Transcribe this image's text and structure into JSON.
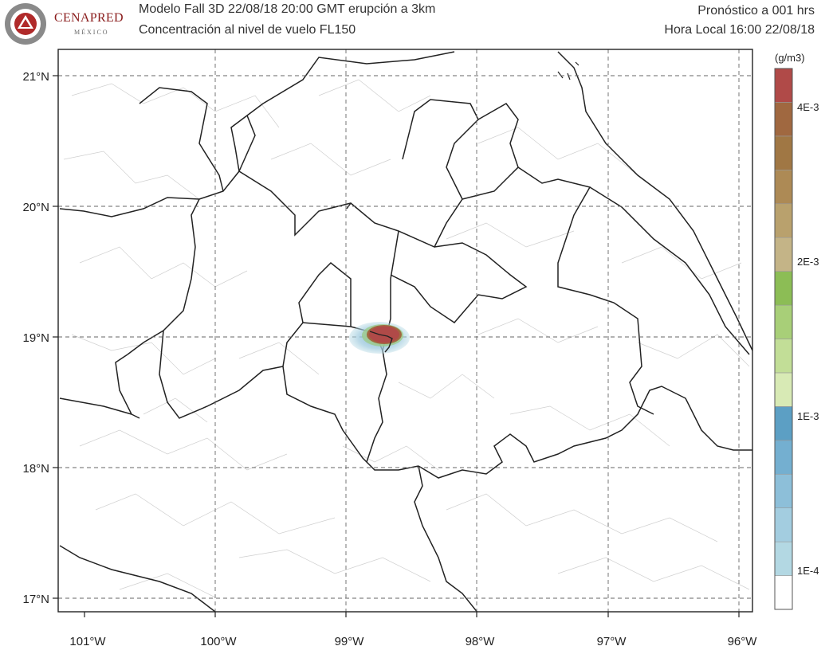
{
  "header": {
    "line1_left": "Modelo Fall 3D   22/08/18 20:00 GMT   erupción a 3km",
    "line2_left": "Concentración al nivel  de vuelo FL150",
    "line1_right": "Pronóstico a   001 hrs",
    "line2_right": "Hora Local 16:00 22/08/18"
  },
  "logo": {
    "name": "CENAPRED",
    "sub": "MÉXICO"
  },
  "map": {
    "lat_labels": [
      "21°N",
      "20°N",
      "19°N",
      "18°N",
      "17°N"
    ],
    "lon_labels": [
      "101°W",
      "100°W",
      "99°W",
      "98°W",
      "97°W",
      "96°W"
    ],
    "grid": "dashed"
  },
  "colorbar": {
    "unit": "(g/m3)",
    "colors": [
      "#ffffff",
      "#b3d8e3",
      "#a3cde0",
      "#8dbfd9",
      "#74afd0",
      "#5c9fc4",
      "#d8eab5",
      "#c2de97",
      "#a8cf78",
      "#8cbd55",
      "#c4b487",
      "#b9a16d",
      "#ad8a55",
      "#a07744",
      "#a06840",
      "#b04a48"
    ],
    "tick_labels": [
      "1E-4",
      "1E-3",
      "2E-3",
      "4E-3"
    ]
  },
  "plume": {
    "center_lat": 19.0,
    "center_lon": -98.68,
    "color_core": "#b04a48",
    "color_halo": "#8dbfd9"
  }
}
